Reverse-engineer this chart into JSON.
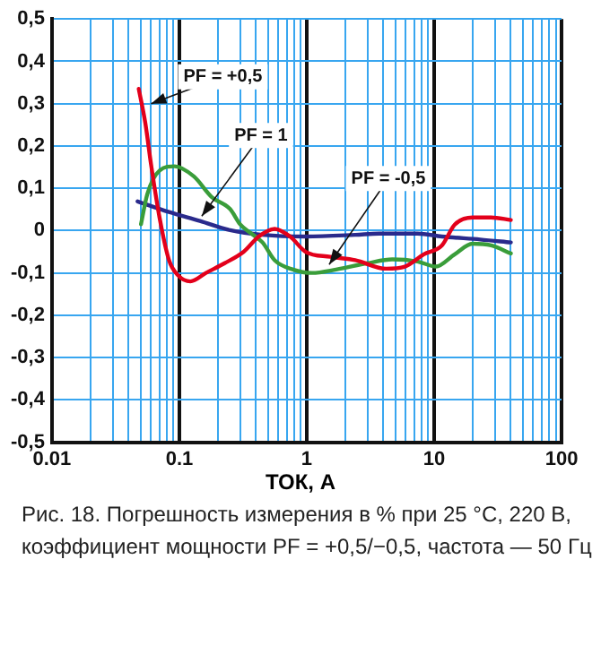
{
  "chart_data": {
    "type": "line",
    "xlabel": "ТОК, А",
    "log": "x",
    "grid": true,
    "legend": false,
    "marker": "none",
    "line_style": "solid",
    "xlim": [
      0.01,
      100
    ],
    "xticks": [
      {
        "value": 0.01,
        "label": "0.01"
      },
      {
        "value": 0.02,
        "label": null
      },
      {
        "value": 0.03,
        "label": null
      },
      {
        "value": 0.04,
        "label": null
      },
      {
        "value": 0.05,
        "label": null
      },
      {
        "value": 0.06,
        "label": null
      },
      {
        "value": 0.07,
        "label": null
      },
      {
        "value": 0.08,
        "label": null
      },
      {
        "value": 0.09,
        "label": null
      },
      {
        "value": 0.1,
        "label": "0.1"
      },
      {
        "value": 0.2,
        "label": null
      },
      {
        "value": 0.3,
        "label": null
      },
      {
        "value": 0.4,
        "label": null
      },
      {
        "value": 0.5,
        "label": null
      },
      {
        "value": 0.6,
        "label": null
      },
      {
        "value": 0.7,
        "label": null
      },
      {
        "value": 0.8,
        "label": null
      },
      {
        "value": 0.9,
        "label": null
      },
      {
        "value": 1,
        "label": "1"
      },
      {
        "value": 2,
        "label": null
      },
      {
        "value": 3,
        "label": null
      },
      {
        "value": 4,
        "label": null
      },
      {
        "value": 5,
        "label": null
      },
      {
        "value": 6,
        "label": null
      },
      {
        "value": 7,
        "label": null
      },
      {
        "value": 8,
        "label": null
      },
      {
        "value": 9,
        "label": null
      },
      {
        "value": 10,
        "label": "10"
      },
      {
        "value": 20,
        "label": null
      },
      {
        "value": 30,
        "label": null
      },
      {
        "value": 40,
        "label": null
      },
      {
        "value": 50,
        "label": null
      },
      {
        "value": 60,
        "label": null
      },
      {
        "value": 70,
        "label": null
      },
      {
        "value": 80,
        "label": null
      },
      {
        "value": 90,
        "label": null
      },
      {
        "value": 100,
        "label": "100"
      }
    ],
    "ylim": [
      -0.5,
      0.5
    ],
    "yticks": [
      {
        "value": -0.5,
        "label": "-0,5"
      },
      {
        "value": -0.4,
        "label": "-0,4"
      },
      {
        "value": -0.3,
        "label": "-0,3"
      },
      {
        "value": -0.2,
        "label": "-0,2"
      },
      {
        "value": -0.1,
        "label": "-0,1"
      },
      {
        "value": 0,
        "label": "0"
      },
      {
        "value": 0.1,
        "label": "0,1"
      },
      {
        "value": 0.2,
        "label": "0,2"
      },
      {
        "value": 0.3,
        "label": "0,3"
      },
      {
        "value": 0.4,
        "label": "0,4"
      },
      {
        "value": 0.5,
        "label": "0,5"
      }
    ],
    "series": [
      {
        "color": "#e3001b",
        "x": [
          0.048,
          0.054,
          0.06,
          0.07,
          0.083,
          0.098,
          0.122,
          0.162,
          0.227,
          0.32,
          0.42,
          0.56,
          0.74,
          0.98,
          1.53,
          2.4,
          4.2,
          5.9,
          8.3,
          11.5,
          14.5,
          20,
          28,
          40
        ],
        "values": [
          0.335,
          0.255,
          0.156,
          0.03,
          -0.07,
          -0.106,
          -0.12,
          -0.1,
          -0.077,
          -0.05,
          -0.014,
          0.004,
          -0.014,
          -0.05,
          -0.062,
          -0.07,
          -0.09,
          -0.085,
          -0.056,
          -0.035,
          0.014,
          0.031,
          0.031,
          0.025
        ]
      },
      {
        "color": "#3a9d3a",
        "x": [
          0.05,
          0.056,
          0.07,
          0.092,
          0.13,
          0.18,
          0.25,
          0.3,
          0.36,
          0.45,
          0.56,
          0.78,
          1.1,
          1.7,
          3,
          4.7,
          7.4,
          10.3,
          14.5,
          20,
          28,
          40
        ],
        "values": [
          0.015,
          0.086,
          0.142,
          0.152,
          0.128,
          0.079,
          0.051,
          0.015,
          -0.005,
          -0.028,
          -0.07,
          -0.092,
          -0.1,
          -0.092,
          -0.077,
          -0.068,
          -0.073,
          -0.085,
          -0.056,
          -0.031,
          -0.035,
          -0.054
        ]
      },
      {
        "color": "#2a2a8c",
        "x": [
          0.047,
          0.083,
          0.145,
          0.25,
          0.45,
          0.98,
          2.4,
          3.7,
          7.4,
          11.5,
          23,
          40
        ],
        "values": [
          0.069,
          0.044,
          0.023,
          0.001,
          -0.01,
          -0.014,
          -0.01,
          -0.007,
          -0.007,
          -0.014,
          -0.021,
          -0.028
        ]
      }
    ],
    "annotations": [
      {
        "text": "PF = +0,5",
        "x": 0.06,
        "y": 0.3
      },
      {
        "text": "PF = 1",
        "x": 0.15,
        "y": 0.034
      },
      {
        "text": "PF = -0,5",
        "x": 1.5,
        "y": -0.08
      },
      "Рис. 18. Погрешность измерения в % при 25 °C, 220 В, коэффициент мощности PF = +0,5/−0,5, частота — 50 Гц"
    ]
  }
}
